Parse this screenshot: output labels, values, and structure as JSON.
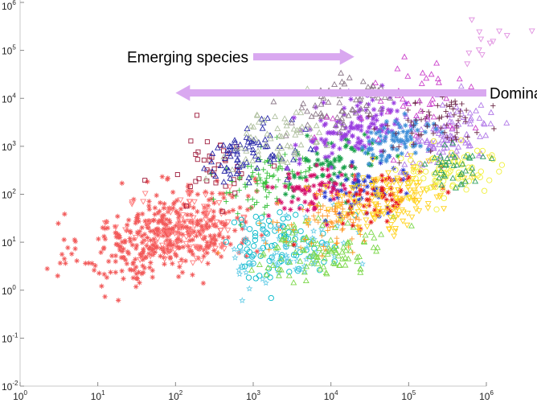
{
  "chart_data": {
    "type": "scatter",
    "title": "",
    "xlabel": "",
    "ylabel": "",
    "xscale": "log",
    "yscale": "log",
    "xlim": [
      1,
      1000000
    ],
    "ylim": [
      0.01,
      1000000
    ],
    "grid": false,
    "x_ticks": [
      {
        "base": "10",
        "exp": "0"
      },
      {
        "base": "10",
        "exp": "1"
      },
      {
        "base": "10",
        "exp": "2"
      },
      {
        "base": "10",
        "exp": "3"
      },
      {
        "base": "10",
        "exp": "4"
      },
      {
        "base": "10",
        "exp": "5"
      },
      {
        "base": "10",
        "exp": "6"
      }
    ],
    "y_ticks": [
      {
        "base": "10",
        "exp": "-2"
      },
      {
        "base": "10",
        "exp": "-1"
      },
      {
        "base": "10",
        "exp": "0"
      },
      {
        "base": "10",
        "exp": "1"
      },
      {
        "base": "10",
        "exp": "2"
      },
      {
        "base": "10",
        "exp": "3"
      },
      {
        "base": "10",
        "exp": "4"
      },
      {
        "base": "10",
        "exp": "5"
      },
      {
        "base": "10",
        "exp": "6"
      }
    ],
    "clusters": [
      {
        "color": "#f25a5a",
        "marker": "asterisk",
        "cx": 80,
        "cy": 15,
        "sx": 0.55,
        "sy": 0.45,
        "n": 420,
        "tilt": 0.35
      },
      {
        "color": "#ff7f7f",
        "marker": "triangle-down",
        "cx": 150,
        "cy": 20,
        "sx": 0.4,
        "sy": 0.4,
        "n": 90,
        "tilt": 0.3
      },
      {
        "color": "#9f1f3f",
        "marker": "square",
        "cx": 300,
        "cy": 300,
        "sx": 0.3,
        "sy": 0.4,
        "n": 40,
        "tilt": 0.2
      },
      {
        "color": "#00b8c8",
        "marker": "circle",
        "cx": 2000,
        "cy": 10,
        "sx": 0.35,
        "sy": 0.35,
        "n": 90,
        "tilt": 0.2
      },
      {
        "color": "#6fd0e8",
        "marker": "star",
        "cx": 3000,
        "cy": 6,
        "sx": 0.4,
        "sy": 0.35,
        "n": 70,
        "tilt": 0.2
      },
      {
        "color": "#7cd84a",
        "marker": "triangle-up",
        "cx": 8000,
        "cy": 8,
        "sx": 0.4,
        "sy": 0.35,
        "n": 110,
        "tilt": 0.3
      },
      {
        "color": "#36c03a",
        "marker": "plus",
        "cx": 1500,
        "cy": 200,
        "sx": 0.35,
        "sy": 0.3,
        "n": 90,
        "tilt": 0.3
      },
      {
        "color": "#1aa24a",
        "marker": "asterisk",
        "cx": 12000,
        "cy": 400,
        "sx": 0.3,
        "sy": 0.3,
        "n": 70,
        "tilt": 0.3
      },
      {
        "color": "#2929a8",
        "marker": "triangle-up",
        "cx": 800,
        "cy": 600,
        "sx": 0.3,
        "sy": 0.3,
        "n": 80,
        "tilt": 0.4
      },
      {
        "color": "#2c3cd0",
        "marker": "asterisk",
        "cx": 30000,
        "cy": 150,
        "sx": 0.25,
        "sy": 0.25,
        "n": 60,
        "tilt": 0.3
      },
      {
        "color": "#9a3fe0",
        "marker": "asterisk",
        "cx": 20000,
        "cy": 2500,
        "sx": 0.35,
        "sy": 0.3,
        "n": 130,
        "tilt": 0.4
      },
      {
        "color": "#b27ae8",
        "marker": "triangle-up",
        "cx": 300000,
        "cy": 1500,
        "sx": 0.3,
        "sy": 0.3,
        "n": 110,
        "tilt": 0.4
      },
      {
        "color": "#d60f6b",
        "marker": "asterisk",
        "cx": 6000,
        "cy": 120,
        "sx": 0.3,
        "sy": 0.25,
        "n": 70,
        "tilt": 0.3
      },
      {
        "color": "#e51b1b",
        "marker": "asterisk",
        "cx": 50000,
        "cy": 100,
        "sx": 0.3,
        "sy": 0.25,
        "n": 60,
        "tilt": 0.3
      },
      {
        "color": "#ff9a2a",
        "marker": "plus",
        "cx": 10000,
        "cy": 30,
        "sx": 0.35,
        "sy": 0.3,
        "n": 100,
        "tilt": 0.3
      },
      {
        "color": "#ffd21e",
        "marker": "triangle-down",
        "cx": 60000,
        "cy": 80,
        "sx": 0.4,
        "sy": 0.35,
        "n": 130,
        "tilt": 0.3
      },
      {
        "color": "#f0f03a",
        "marker": "circle",
        "cx": 300000,
        "cy": 300,
        "sx": 0.35,
        "sy": 0.35,
        "n": 80,
        "tilt": 0.2
      },
      {
        "color": "#3f8fd8",
        "marker": "asterisk",
        "cx": 70000,
        "cy": 1200,
        "sx": 0.25,
        "sy": 0.25,
        "n": 80,
        "tilt": 0.6
      },
      {
        "color": "#8d7a8a",
        "marker": "triangle-up",
        "cx": 15000,
        "cy": 8000,
        "sx": 0.4,
        "sy": 0.3,
        "n": 70,
        "tilt": 0.2
      },
      {
        "color": "#6e2b4a",
        "marker": "plus",
        "cx": 200000,
        "cy": 3000,
        "sx": 0.3,
        "sy": 0.3,
        "n": 70,
        "tilt": 0.3
      },
      {
        "color": "#b0c0a0",
        "marker": "triangle-up",
        "cx": 2000,
        "cy": 1500,
        "sx": 0.4,
        "sy": 0.35,
        "n": 60,
        "tilt": 0.3
      },
      {
        "color": "#cc44cc",
        "marker": "triangle-up",
        "cx": 100000,
        "cy": 8000,
        "sx": 0.4,
        "sy": 0.35,
        "n": 40,
        "tilt": 0.3
      },
      {
        "color": "#30a060",
        "marker": "triangle-up",
        "cx": 400000,
        "cy": 400,
        "sx": 0.2,
        "sy": 0.25,
        "n": 40,
        "tilt": 0.2
      },
      {
        "color": "#e090e0",
        "marker": "triangle-down",
        "cx": 1000000,
        "cy": 200000,
        "sx": 0.25,
        "sy": 0.3,
        "n": 12,
        "tilt": 0.5
      }
    ],
    "annotations": [
      {
        "text": "Emerging species",
        "arrow_dir": "right",
        "arrow_color": "#d9a8f0",
        "tail": [
          1000,
          90000
        ],
        "head": [
          20000,
          60000
        ]
      },
      {
        "text": "Dominant species",
        "arrow_dir": "left",
        "arrow_color": "#d9a8f0",
        "tail": [
          1000000,
          13000
        ],
        "head": [
          100,
          13000
        ]
      }
    ]
  }
}
